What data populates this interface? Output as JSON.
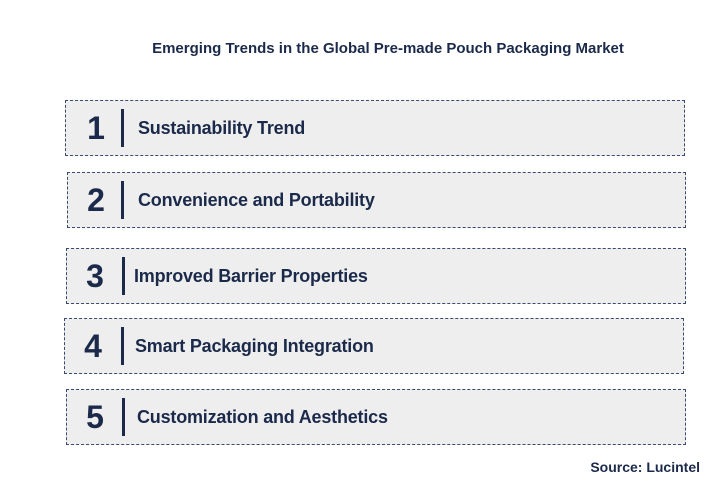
{
  "title": "Emerging Trends in the Global Pre-made Pouch Packaging Market",
  "trends": [
    {
      "number": "1",
      "label": "Sustainability Trend"
    },
    {
      "number": "2",
      "label": "Convenience and Portability"
    },
    {
      "number": "3",
      "label": "Improved Barrier Properties"
    },
    {
      "number": "4",
      "label": "Smart Packaging Integration"
    },
    {
      "number": "5",
      "label": "Customization and Aesthetics"
    }
  ],
  "source": "Source: Lucintel",
  "colors": {
    "text": "#1b2a4a",
    "box_fill": "#eeeeee",
    "box_border": "#3a4b6e"
  }
}
